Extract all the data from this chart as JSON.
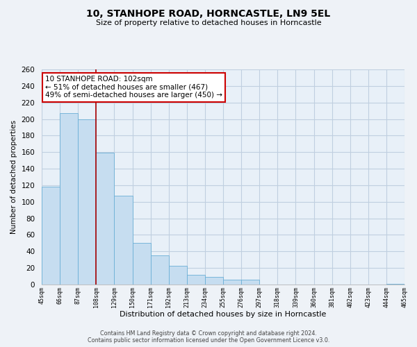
{
  "title": "10, STANHOPE ROAD, HORNCASTLE, LN9 5EL",
  "subtitle": "Size of property relative to detached houses in Horncastle",
  "xlabel": "Distribution of detached houses by size in Horncastle",
  "ylabel": "Number of detached properties",
  "bar_values": [
    118,
    207,
    200,
    159,
    107,
    50,
    35,
    23,
    12,
    9,
    6,
    6,
    0,
    0,
    0,
    0,
    0,
    0,
    0,
    1
  ],
  "bin_labels": [
    "45sqm",
    "66sqm",
    "87sqm",
    "108sqm",
    "129sqm",
    "150sqm",
    "171sqm",
    "192sqm",
    "213sqm",
    "234sqm",
    "255sqm",
    "276sqm",
    "297sqm",
    "318sqm",
    "339sqm",
    "360sqm",
    "381sqm",
    "402sqm",
    "423sqm",
    "444sqm",
    "465sqm"
  ],
  "bar_color": "#c6ddf0",
  "bar_edge_color": "#6aafd6",
  "marker_color": "#aa0000",
  "annotation_title": "10 STANHOPE ROAD: 102sqm",
  "annotation_line1": "← 51% of detached houses are smaller (467)",
  "annotation_line2": "49% of semi-detached houses are larger (450) →",
  "annotation_box_color": "#ffffff",
  "annotation_box_edge": "#cc0000",
  "ylim": [
    0,
    260
  ],
  "yticks": [
    0,
    20,
    40,
    60,
    80,
    100,
    120,
    140,
    160,
    180,
    200,
    220,
    240,
    260
  ],
  "footer_line1": "Contains HM Land Registry data © Crown copyright and database right 2024.",
  "footer_line2": "Contains public sector information licensed under the Open Government Licence v3.0.",
  "bg_color": "#eef2f7",
  "plot_bg_color": "#e8f0f8",
  "grid_color": "#c0cfe0"
}
